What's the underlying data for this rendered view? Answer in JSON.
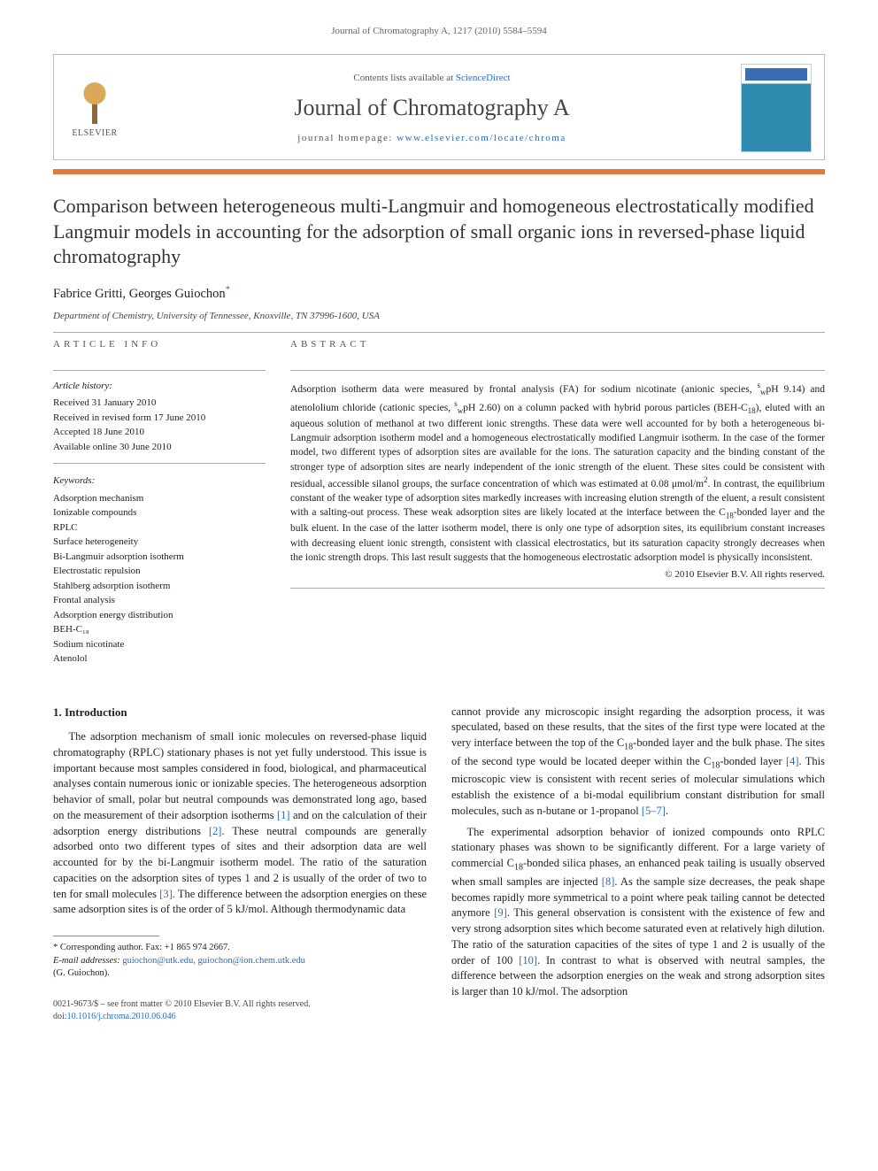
{
  "running_header": "Journal of Chromatography A, 1217 (2010) 5584–5594",
  "masthead": {
    "contents_prefix": "Contents lists available at ",
    "contents_link": "ScienceDirect",
    "journal_name": "Journal of Chromatography A",
    "homepage_prefix": "journal homepage: ",
    "homepage_url": "www.elsevier.com/locate/chroma",
    "publisher_word": "ELSEVIER"
  },
  "colors": {
    "accent_bar": "#e07a3a",
    "link": "#2a6bbf",
    "rule": "#aaaaaa",
    "text": "#222222"
  },
  "title": "Comparison between heterogeneous multi-Langmuir and homogeneous electrostatically modified Langmuir models in accounting for the adsorption of small organic ions in reversed-phase liquid chromatography",
  "authors_line": "Fabrice Gritti, Georges Guiochon",
  "corresponding_mark": "*",
  "affiliation": "Department of Chemistry, University of Tennessee, Knoxville, TN 37996-1600, USA",
  "article_info_heading": "ARTICLE INFO",
  "abstract_heading": "ABSTRACT",
  "history_label": "Article history:",
  "history": [
    "Received 31 January 2010",
    "Received in revised form 17 June 2010",
    "Accepted 18 June 2010",
    "Available online 30 June 2010"
  ],
  "keywords_label": "Keywords:",
  "keywords": [
    "Adsorption mechanism",
    "Ionizable compounds",
    "RPLC",
    "Surface heterogeneity",
    "Bi-Langmuir adsorption isotherm",
    "Electrostatic repulsion",
    "Stahlberg adsorption isotherm",
    "Frontal analysis",
    "Adsorption energy distribution",
    "BEH-C₁₈",
    "Sodium nicotinate",
    "Atenolol"
  ],
  "abstract_html": "Adsorption isotherm data were measured by frontal analysis (FA) for sodium nicotinate (anionic species, <sup>s</sup><sub>w</sub>pH 9.14) and atenololium chloride (cationic species, <sup>s</sup><sub>w</sub>pH 2.60) on a column packed with hybrid porous particles (BEH-C<sub>18</sub>), eluted with an aqueous solution of methanol at two different ionic strengths. These data were well accounted for by both a heterogeneous bi-Langmuir adsorption isotherm model and a homogeneous electrostatically modified Langmuir isotherm. In the case of the former model, two different types of adsorption sites are available for the ions. The saturation capacity and the binding constant of the stronger type of adsorption sites are nearly independent of the ionic strength of the eluent. These sites could be consistent with residual, accessible silanol groups, the surface concentration of which was estimated at 0.08 μmol/m<sup>2</sup>. In contrast, the equilibrium constant of the weaker type of adsorption sites markedly increases with increasing elution strength of the eluent, a result consistent with a salting-out process. These weak adsorption sites are likely located at the interface between the C<sub>18</sub>-bonded layer and the bulk eluent. In the case of the latter isotherm model, there is only one type of adsorption sites, its equilibrium constant increases with decreasing eluent ionic strength, consistent with classical electrostatics, but its saturation capacity strongly decreases when the ionic strength drops. This last result suggests that the homogeneous electrostatic adsorption model is physically inconsistent.",
  "copyright": "© 2010 Elsevier B.V. All rights reserved.",
  "intro_heading": "1.  Introduction",
  "intro_p1_html": "The adsorption mechanism of small ionic molecules on reversed-phase liquid chromatography (RPLC) stationary phases is not yet fully understood. This issue is important because most samples considered in food, biological, and pharmaceutical analyses contain numerous ionic or ionizable species. The heterogeneous adsorption behavior of small, polar but neutral compounds was demonstrated long ago, based on the measurement of their adsorption isotherms <span class=\"ref\">[1]</span> and on the calculation of their adsorption energy distributions <span class=\"ref\">[2]</span>. These neutral compounds are generally adsorbed onto two different types of sites and their adsorption data are well accounted for by the bi-Langmuir isotherm model. The ratio of the saturation capacities on the adsorption sites of types 1 and 2 is usually of the order of two to ten for small molecules <span class=\"ref\">[3]</span>. The difference between the adsorption energies on these same adsorption sites is of the order of 5 kJ/mol. Although thermodynamic data",
  "intro_p1b_html": "cannot provide any microscopic insight regarding the adsorption process, it was speculated, based on these results, that the sites of the first type were located at the very interface between the top of the C<sub class=\"sub18\">18</sub>-bonded layer and the bulk phase. The sites of the second type would be located deeper within the C<sub class=\"sub18\">18</sub>-bonded layer <span class=\"ref\">[4]</span>. This microscopic view is consistent with recent series of molecular simulations which establish the existence of a bi-modal equilibrium constant distribution for small molecules, such as n-butane or 1-propanol <span class=\"ref\">[5–7]</span>.",
  "intro_p2_html": "The experimental adsorption behavior of ionized compounds onto RPLC stationary phases was shown to be significantly different. For a large variety of commercial C<sub class=\"sub18\">18</sub>-bonded silica phases, an enhanced peak tailing is usually observed when small samples are injected <span class=\"ref\">[8]</span>. As the sample size decreases, the peak shape becomes rapidly more symmetrical to a point where peak tailing cannot be detected anymore <span class=\"ref\">[9]</span>. This general observation is consistent with the existence of few and very strong adsorption sites which become saturated even at relatively high dilution. The ratio of the saturation capacities of the sites of type 1 and 2 is usually of the order of 100 <span class=\"ref\">[10]</span>. In contrast to what is observed with neutral samples, the difference between the adsorption energies on the weak and strong adsorption sites is larger than 10 kJ/mol. The adsorption",
  "footnote": {
    "mark": "*",
    "label": "Corresponding author. Fax: +1 865 974 2667.",
    "email_label": "E-mail addresses:",
    "emails": "guiochon@utk.edu, guiochon@ion.chem.utk.edu",
    "author_paren": "(G. Guiochon)."
  },
  "footer": {
    "line1": "0021-9673/$ – see front matter © 2010 Elsevier B.V. All rights reserved.",
    "doi_prefix": "doi:",
    "doi": "10.1016/j.chroma.2010.06.046"
  }
}
